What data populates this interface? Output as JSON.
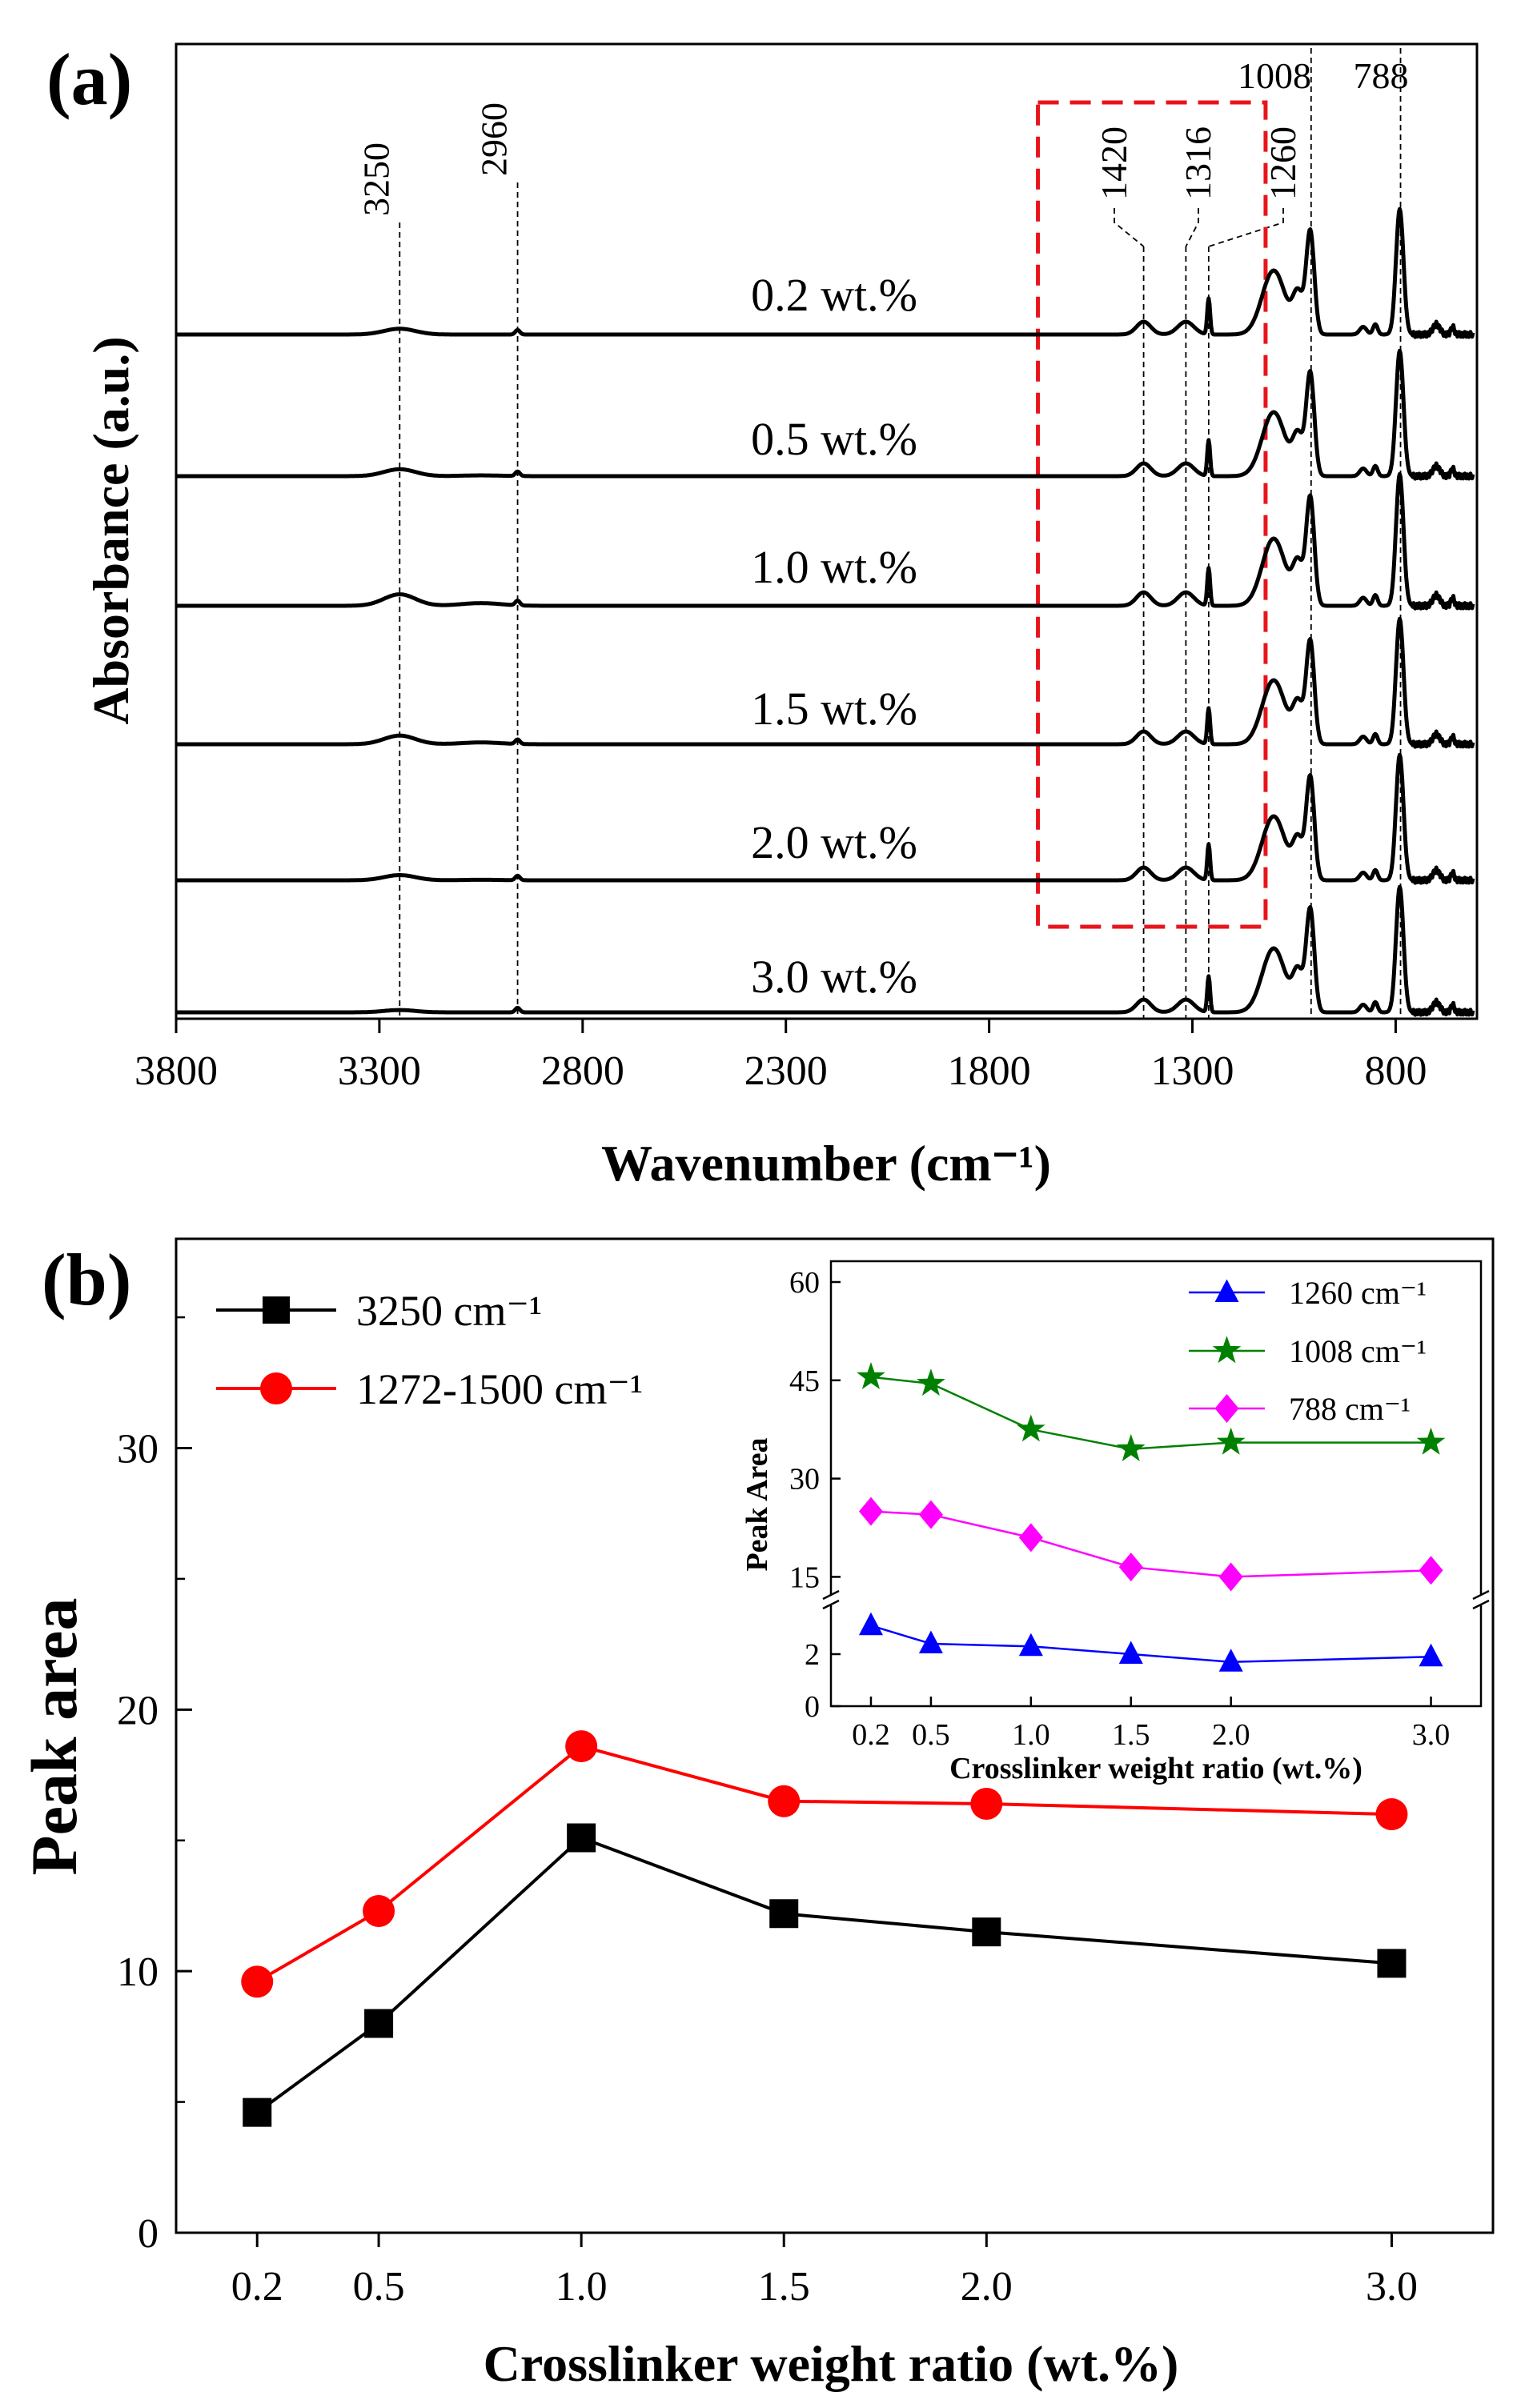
{
  "chart_data": [
    {
      "panel": "(a)",
      "type": "line",
      "xlabel": "Wavenumber (cm⁻¹)",
      "ylabel": "Absorbance (a.u.)",
      "xlim": [
        3800,
        600
      ],
      "x_ticks": [
        "3800",
        "3300",
        "2800",
        "2300",
        "1800",
        "1300",
        "800"
      ],
      "peaks": [
        {
          "label": "3250",
          "x": 3250
        },
        {
          "label": "2960",
          "x": 2960
        },
        {
          "label": "1420",
          "x": 1420
        },
        {
          "label": "1316",
          "x": 1316
        },
        {
          "label": "1260",
          "x": 1260
        },
        {
          "label": "1008",
          "x": 1008
        },
        {
          "label": "788",
          "x": 788
        }
      ],
      "highlight_region": [
        1680,
        1120
      ],
      "series": [
        {
          "name": "0.2 wt.%",
          "baseline": 0.0
        },
        {
          "name": "0.5 wt.%",
          "baseline": 1.0
        },
        {
          "name": "1.0 wt.%",
          "baseline": 2.0
        },
        {
          "name": "1.5 wt.%",
          "baseline": 3.0
        },
        {
          "name": "2.0 wt.%",
          "baseline": 4.0
        },
        {
          "name": "3.0 wt.%",
          "baseline": 5.0
        }
      ]
    },
    {
      "panel": "(b)",
      "type": "line",
      "xlabel": "Crosslinker weight ratio (wt.%)",
      "ylabel": "Peak area",
      "ylim": [
        0,
        38
      ],
      "xlim": [
        0,
        3.25
      ],
      "x": [
        0.2,
        0.5,
        1.0,
        1.5,
        2.0,
        3.0
      ],
      "x_ticks": [
        "0.2",
        "0.5",
        "1.0",
        "1.5",
        "2.0",
        "3.0"
      ],
      "y_ticks": [
        "0",
        "10",
        "20",
        "30"
      ],
      "series": [
        {
          "name": "3250 cm⁻¹",
          "marker": "square",
          "color": "#000000",
          "values": [
            4.6,
            8.0,
            15.1,
            12.2,
            11.5,
            10.3
          ]
        },
        {
          "name": "1272-1500 cm⁻¹",
          "marker": "circle",
          "color": "#ff0000",
          "values": [
            9.6,
            12.3,
            18.6,
            16.5,
            16.4,
            16.0
          ]
        }
      ]
    },
    {
      "panel": "(b) inset",
      "type": "line",
      "xlabel": "Crosslinker weight ratio (wt.%)",
      "ylabel": "Peak Area",
      "x": [
        0.2,
        0.5,
        1.0,
        1.5,
        2.0,
        3.0
      ],
      "x_ticks": [
        "0.2",
        "0.5",
        "1.0",
        "1.5",
        "2.0",
        "3.0"
      ],
      "y_ticks": [
        "0",
        "2",
        "15",
        "30",
        "45",
        "60"
      ],
      "axis_break": [
        4,
        12
      ],
      "series": [
        {
          "name": "1260 cm⁻¹",
          "marker": "triangle",
          "color": "#0000ff",
          "values": [
            3.1,
            2.4,
            2.3,
            2.0,
            1.7,
            1.9
          ]
        },
        {
          "name": "1008 cm⁻¹",
          "marker": "star",
          "color": "#008000",
          "values": [
            45.5,
            44.5,
            37.5,
            34.5,
            35.5,
            35.5
          ]
        },
        {
          "name": "788 cm⁻¹",
          "marker": "diamond",
          "color": "#ff00ff",
          "values": [
            25.0,
            24.5,
            21.0,
            16.5,
            15.0,
            16.0
          ]
        }
      ]
    }
  ]
}
